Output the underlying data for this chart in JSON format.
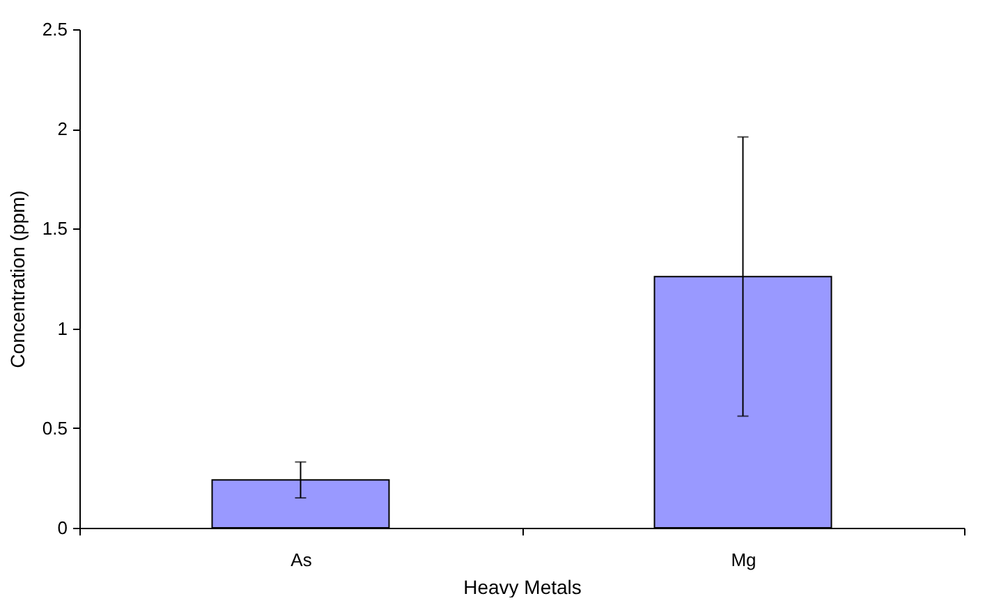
{
  "chart_data": {
    "type": "bar",
    "xlabel": "Heavy Metals",
    "ylabel": "Concentration (ppm)",
    "categories": [
      "As",
      "Mg"
    ],
    "values": [
      0.24,
      1.26
    ],
    "errors": [
      0.09,
      0.7
    ],
    "color": "#9999ff",
    "ylim": [
      0,
      2.5
    ],
    "yticks": [
      0,
      0.5,
      1,
      1.5,
      2,
      2.5
    ],
    "grid": false
  }
}
